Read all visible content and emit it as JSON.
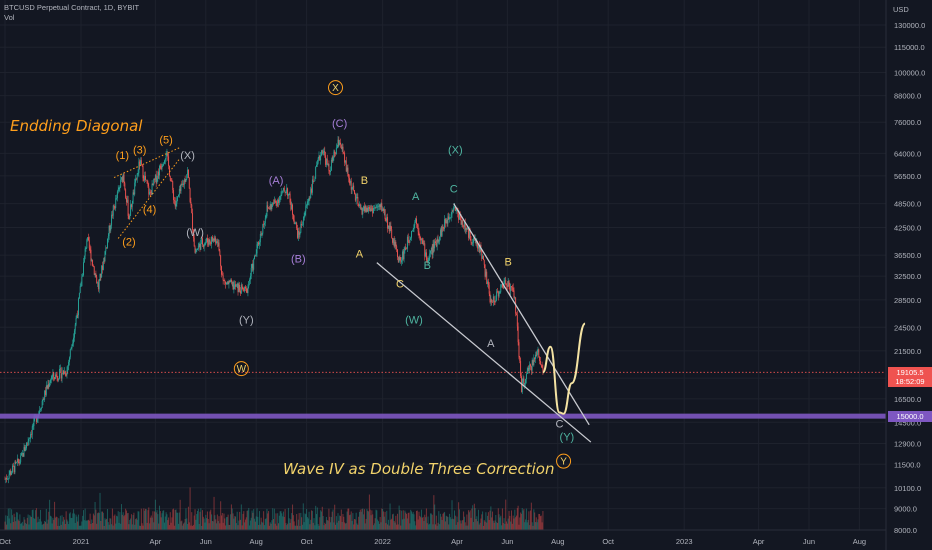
{
  "header": {
    "title": "BTCUSD Perpetual Contract, 1D, BYBIT",
    "volume_label": "Vol"
  },
  "price_scale": {
    "currency": "USD",
    "current_price": "19105.5",
    "countdown": "18:52:09",
    "support_level": "15000.0"
  },
  "colors": {
    "background": "#131722",
    "grid": "#1e222d",
    "candle_up": "#26a69a",
    "candle_down": "#ef5350",
    "trendline": "#c8cad0",
    "support_line": "#7e57c2",
    "text": "#b2b5be",
    "orange": "#ff9f1c",
    "yellow": "#f2d36b",
    "purple": "#a77fd8",
    "teal": "#4fb5a1",
    "projection": "#f4e3a3"
  },
  "chart_data": {
    "type": "candlestick",
    "symbol": "BTCUSD",
    "timeframe": "1D",
    "y_scale": "log",
    "ylim": [
      8000,
      150000
    ],
    "xlim": [
      "2020-10-01",
      "2023-09-01"
    ],
    "y_ticks": [
      8000,
      9000,
      10100,
      11500,
      12900,
      14500,
      16500,
      18500,
      21500,
      24500,
      28500,
      32500,
      36500,
      42500,
      48500,
      56500,
      64000,
      76000,
      88000,
      100000,
      115000,
      130000
    ],
    "y_tick_labels": [
      "8000.0",
      "9000.0",
      "10100.0",
      "11500.0",
      "12900.0",
      "14500.0",
      "16500.0",
      "18500.0",
      "21500.0",
      "24500.0",
      "28500.0",
      "32500.0",
      "36500.0",
      "42500.0",
      "48500.0",
      "56500.0",
      "64000.0",
      "76000.0",
      "88000.0",
      "100000.0",
      "115000.0",
      "130000.0"
    ],
    "x_ticks": [
      {
        "date": "2020-10-01",
        "label": "Oct"
      },
      {
        "date": "2021-01-01",
        "label": "2021"
      },
      {
        "date": "2021-04-01",
        "label": "Apr"
      },
      {
        "date": "2021-06-01",
        "label": "Jun"
      },
      {
        "date": "2021-08-01",
        "label": "Aug"
      },
      {
        "date": "2021-10-01",
        "label": "Oct"
      },
      {
        "date": "2022-01-01",
        "label": "2022"
      },
      {
        "date": "2022-04-01",
        "label": "Apr"
      },
      {
        "date": "2022-06-01",
        "label": "Jun"
      },
      {
        "date": "2022-08-01",
        "label": "Aug"
      },
      {
        "date": "2022-10-01",
        "label": "Oct"
      },
      {
        "date": "2023-01-01",
        "label": "2023"
      },
      {
        "date": "2023-04-01",
        "label": "Apr"
      },
      {
        "date": "2023-06-01",
        "label": "Jun"
      },
      {
        "date": "2023-08-01",
        "label": "Aug"
      }
    ],
    "price_path": [
      [
        "2020-10-01",
        10600
      ],
      [
        "2020-10-20",
        11800
      ],
      [
        "2020-11-10",
        15300
      ],
      [
        "2020-11-25",
        18500
      ],
      [
        "2020-12-15",
        19300
      ],
      [
        "2020-12-28",
        27000
      ],
      [
        "2021-01-08",
        40000
      ],
      [
        "2021-01-22",
        30500
      ],
      [
        "2021-02-08",
        46000
      ],
      [
        "2021-02-21",
        57000
      ],
      [
        "2021-02-28",
        45000
      ],
      [
        "2021-03-13",
        61000
      ],
      [
        "2021-03-25",
        51000
      ],
      [
        "2021-04-14",
        64500
      ],
      [
        "2021-04-25",
        48000
      ],
      [
        "2021-05-10",
        58000
      ],
      [
        "2021-05-19",
        37000
      ],
      [
        "2021-05-26",
        39000
      ],
      [
        "2021-06-15",
        40000
      ],
      [
        "2021-06-22",
        31500
      ],
      [
        "2021-07-20",
        29800
      ],
      [
        "2021-08-14",
        47000
      ],
      [
        "2021-08-25",
        49000
      ],
      [
        "2021-09-07",
        52800
      ],
      [
        "2021-09-21",
        40500
      ],
      [
        "2021-10-20",
        66000
      ],
      [
        "2021-10-28",
        58000
      ],
      [
        "2021-11-10",
        69000
      ],
      [
        "2021-11-20",
        56500
      ],
      [
        "2021-12-04",
        47000
      ],
      [
        "2021-12-14",
        47000
      ],
      [
        "2022-01-01",
        47500
      ],
      [
        "2022-01-22",
        35000
      ],
      [
        "2022-02-10",
        44500
      ],
      [
        "2022-02-24",
        35500
      ],
      [
        "2022-03-28",
        48000
      ],
      [
        "2022-04-15",
        41000
      ],
      [
        "2022-04-30",
        37600
      ],
      [
        "2022-05-12",
        28000
      ],
      [
        "2022-05-31",
        31800
      ],
      [
        "2022-06-10",
        29000
      ],
      [
        "2022-06-18",
        17600
      ],
      [
        "2022-07-08",
        21500
      ],
      [
        "2022-07-14",
        19100
      ]
    ],
    "trendlines": [
      {
        "from": [
          "2021-12-25",
          35000
        ],
        "to": [
          "2022-09-10",
          13000
        ]
      },
      {
        "from": [
          "2022-03-28",
          48500
        ],
        "to": [
          "2022-09-08",
          14300
        ]
      }
    ],
    "horizontal_levels": [
      {
        "price": 15000,
        "label": "15000.0"
      },
      {
        "price": 19105.5,
        "label": "19105.5"
      }
    ],
    "projection": [
      [
        "2022-07-14",
        19100
      ],
      [
        "2022-07-23",
        22000
      ],
      [
        "2022-08-03",
        15300
      ],
      [
        "2022-08-08",
        15200
      ],
      [
        "2022-08-18",
        18000
      ],
      [
        "2022-09-03",
        25000
      ]
    ],
    "volume": "daily volume histogram along the bottom pane"
  },
  "annotations": {
    "ending_diagonal": "Endding Diagonal",
    "correction_note": "Wave IV as Double Three Correction",
    "labels": [
      {
        "text": "(1)",
        "date": "2021-02-20",
        "price": 62000,
        "color": "orange"
      },
      {
        "text": "(2)",
        "date": "2021-02-28",
        "price": 38500,
        "color": "orange"
      },
      {
        "text": "(3)",
        "date": "2021-03-13",
        "price": 64000,
        "color": "orange"
      },
      {
        "text": "(4)",
        "date": "2021-03-25",
        "price": 46000,
        "color": "orange"
      },
      {
        "text": "(5)",
        "date": "2021-04-14",
        "price": 67500,
        "color": "orange"
      },
      {
        "text": "(X)",
        "date": "2021-05-10",
        "price": 62000,
        "color": "text"
      },
      {
        "text": "(W)",
        "date": "2021-05-19",
        "price": 40500,
        "color": "text"
      },
      {
        "text": "(Y)",
        "date": "2021-07-20",
        "price": 25000,
        "color": "text"
      },
      {
        "text": "(A)",
        "date": "2021-08-25",
        "price": 54000,
        "color": "purple"
      },
      {
        "text": "(B)",
        "date": "2021-09-21",
        "price": 35000,
        "color": "purple"
      },
      {
        "text": "(C)",
        "date": "2021-11-10",
        "price": 74000,
        "color": "purple"
      },
      {
        "text": "B",
        "date": "2021-12-10",
        "price": 54000,
        "color": "yellow"
      },
      {
        "text": "A",
        "date": "2021-12-04",
        "price": 36000,
        "color": "yellow"
      },
      {
        "text": "C",
        "date": "2022-01-22",
        "price": 30500,
        "color": "yellow"
      },
      {
        "text": "A",
        "date": "2022-02-10",
        "price": 49500,
        "color": "teal"
      },
      {
        "text": "B",
        "date": "2022-02-24",
        "price": 33800,
        "color": "teal"
      },
      {
        "text": "C",
        "date": "2022-03-28",
        "price": 51500,
        "color": "teal"
      },
      {
        "text": "(X)",
        "date": "2022-03-30",
        "price": 64000,
        "color": "teal"
      },
      {
        "text": "(W)",
        "date": "2022-02-08",
        "price": 25000,
        "color": "teal"
      },
      {
        "text": "B",
        "date": "2022-06-02",
        "price": 34500,
        "color": "yellow"
      },
      {
        "text": "A",
        "date": "2022-05-12",
        "price": 22000,
        "color": "text"
      },
      {
        "text": "C",
        "date": "2022-08-03",
        "price": 14100,
        "color": "text"
      },
      {
        "text": "(Y)",
        "date": "2022-08-12",
        "price": 13100,
        "color": "teal"
      }
    ],
    "circled": [
      {
        "text": "X",
        "date": "2021-11-05",
        "price": 92000
      },
      {
        "text": "W",
        "date": "2021-07-14",
        "price": 19500
      },
      {
        "text": "Y",
        "date": "2022-08-08",
        "price": 11700
      }
    ]
  }
}
